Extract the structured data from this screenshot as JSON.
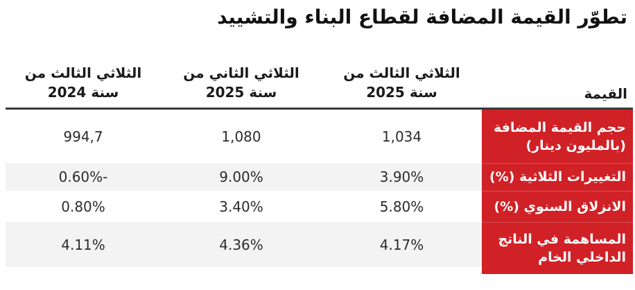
{
  "title": "تطوّر القيمة المضافة لقطاع البناء والتشييد",
  "table": {
    "value_column_header": "القيمة",
    "period_columns": [
      {
        "line1": "الثلاثي الثالث من",
        "line2": "سنة 2025"
      },
      {
        "line1": "الثلاثي الثاني من",
        "line2": "سنة 2025"
      },
      {
        "line1": "الثلاثي الثالث من",
        "line2": "سنة 2024"
      }
    ],
    "rows": [
      {
        "label_line1": "حجم القيمة المضافة",
        "label_line2": "(بالمليون دينار)",
        "values": [
          "1,034",
          "1,080",
          "994,7"
        ]
      },
      {
        "label_line1": "التغييرات الثلاثية (%)",
        "label_line2": "",
        "values": [
          "3.90%",
          "9.00%",
          "-0.60%"
        ]
      },
      {
        "label_line1": "الانزلاق السنوي (%)",
        "label_line2": "",
        "values": [
          "5.80%",
          "3.40%",
          "0.80%"
        ]
      },
      {
        "label_line1": "المساهمة في الناتج",
        "label_line2": "الداخلي الخام",
        "values": [
          "4.17%",
          "4.36%",
          "4.11%"
        ]
      }
    ]
  },
  "chart_data": {
    "type": "table",
    "title": "تطوّر القيمة المضافة لقطاع البناء والتشييد",
    "columns": [
      "القيمة",
      "الثلاثي الثالث من سنة 2025",
      "الثلاثي الثاني من سنة 2025",
      "الثلاثي الثالث من سنة 2024"
    ],
    "rows": [
      [
        "حجم القيمة المضافة (بالمليون دينار)",
        "1,034",
        "1,080",
        "994,7"
      ],
      [
        "التغييرات الثلاثية (%)",
        "3.90%",
        "9.00%",
        "-0.60%"
      ],
      [
        "الانزلاق السنوي (%)",
        "5.80%",
        "3.40%",
        "0.80%"
      ],
      [
        "المساهمة في الناتج الداخلي الخام",
        "4.17%",
        "4.36%",
        "4.11%"
      ]
    ],
    "layout_hints": {
      "direction": "rtl",
      "zebra_striping": true,
      "label_column_highlighted": true
    }
  },
  "colors": {
    "accent_red": "#d02127",
    "stripe_gray": "#f3f3f3",
    "separator_dark": "#383838",
    "text_dark": "#1a1a1a",
    "label_text": "#ffffff"
  }
}
